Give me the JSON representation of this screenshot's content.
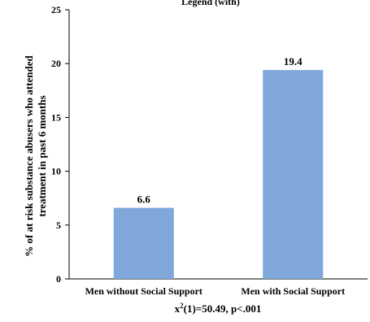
{
  "chart_data": {
    "type": "bar",
    "title_fragment": "Legend (with)",
    "categories": [
      "Men without Social Support",
      "Men with Social Support"
    ],
    "values": [
      6.6,
      19.4
    ],
    "data_labels": [
      "6.6",
      "19.4"
    ],
    "ylabel_lines": [
      "% of at risk substance abusers who attended",
      "treatment in past 6 months"
    ],
    "xlabel_main": "x",
    "xlabel_sup": "2",
    "xlabel_rest": "(1)=50.49, p<.001",
    "ylim": [
      0,
      25
    ],
    "yticks": [
      0,
      5,
      10,
      15,
      20,
      25
    ],
    "bar_color": "#7fa7d9",
    "grid": false,
    "legend": "none"
  }
}
